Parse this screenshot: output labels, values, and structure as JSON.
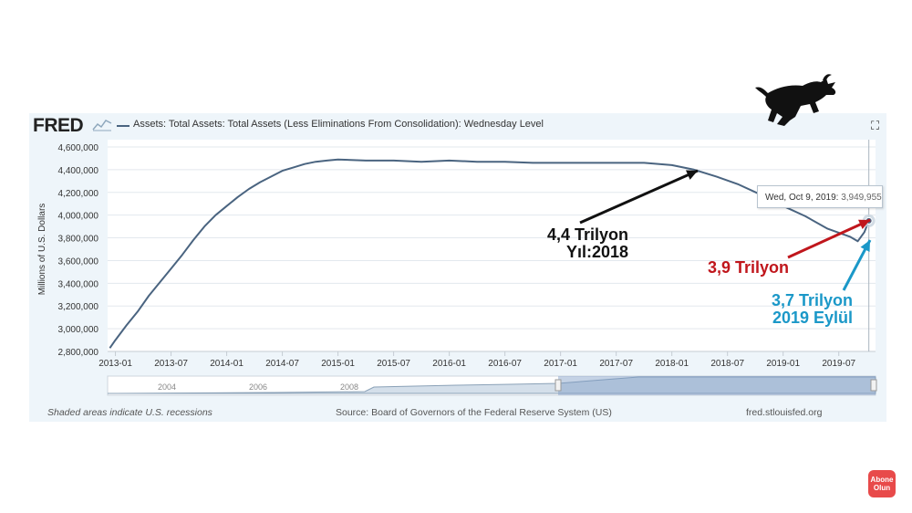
{
  "header": {
    "logo": "FRED",
    "series_title": "Assets: Total Assets: Total Assets (Less Eliminations From Consolidation): Wednesday Level"
  },
  "colors": {
    "line": "#4a6480",
    "panel": "#eef5fa",
    "red": "#c0161c",
    "blue": "#1b98c8"
  },
  "chart_data": {
    "type": "line",
    "ylabel": "Millions of U.S. Dollars",
    "y_ticks": [
      "4,600,000",
      "4,400,000",
      "4,200,000",
      "4,000,000",
      "3,800,000",
      "3,600,000",
      "3,400,000",
      "3,200,000",
      "3,000,000",
      "2,800,000"
    ],
    "y_tick_values": [
      4600000,
      4400000,
      4200000,
      4000000,
      3800000,
      3600000,
      3400000,
      3200000,
      3000000,
      2800000
    ],
    "ylim": [
      2800000,
      4600000
    ],
    "x_ticks": [
      "2013-01",
      "2013-07",
      "2014-01",
      "2014-07",
      "2015-01",
      "2015-07",
      "2016-01",
      "2016-07",
      "2017-01",
      "2017-07",
      "2018-01",
      "2018-07",
      "2019-01",
      "2019-07"
    ],
    "x_tick_values": [
      2013.0,
      2013.5,
      2014.0,
      2014.5,
      2015.0,
      2015.5,
      2016.0,
      2016.5,
      2017.0,
      2017.5,
      2018.0,
      2018.5,
      2019.0,
      2019.5
    ],
    "xlim": [
      2012.93,
      2019.83
    ],
    "grid": true,
    "series": [
      {
        "name": "Assets: Total Assets: Total Assets (Less Eliminations From Consolidation): Wednesday Level",
        "x": [
          2012.95,
          2013.0,
          2013.1,
          2013.2,
          2013.3,
          2013.4,
          2013.5,
          2013.6,
          2013.7,
          2013.8,
          2013.9,
          2014.0,
          2014.1,
          2014.2,
          2014.3,
          2014.4,
          2014.5,
          2014.6,
          2014.7,
          2014.8,
          2014.9,
          2015.0,
          2015.25,
          2015.5,
          2015.75,
          2016.0,
          2016.25,
          2016.5,
          2016.75,
          2017.0,
          2017.25,
          2017.5,
          2017.75,
          2018.0,
          2018.2,
          2018.4,
          2018.6,
          2018.8,
          2019.0,
          2019.2,
          2019.4,
          2019.6,
          2019.67,
          2019.73,
          2019.77
        ],
        "y": [
          2830000,
          2900000,
          3030000,
          3150000,
          3290000,
          3410000,
          3530000,
          3650000,
          3780000,
          3900000,
          4000000,
          4080000,
          4160000,
          4230000,
          4290000,
          4340000,
          4390000,
          4420000,
          4450000,
          4470000,
          4480000,
          4490000,
          4480000,
          4480000,
          4470000,
          4480000,
          4470000,
          4470000,
          4460000,
          4460000,
          4460000,
          4460000,
          4460000,
          4440000,
          4400000,
          4340000,
          4270000,
          4180000,
          4080000,
          3990000,
          3880000,
          3810000,
          3770000,
          3850000,
          3949955
        ]
      }
    ],
    "tooltip": {
      "label": "Wed, Oct 9, 2019:",
      "value": "3,949,955"
    },
    "navigator_years": [
      "2004",
      "2006",
      "2008"
    ],
    "annotations": [
      {
        "lines": [
          "4,4 Trilyon",
          "Yıl:2018"
        ],
        "color": "#111111"
      },
      {
        "lines": [
          "3,9 Trilyon"
        ],
        "color": "#c0161c"
      },
      {
        "lines": [
          "3,7 Trilyon",
          "2019 Eylül"
        ],
        "color": "#1b98c8"
      }
    ]
  },
  "footer": {
    "recession_note": "Shaded areas indicate U.S. recessions",
    "source": "Source: Board of Governors of the Federal Reserve System (US)",
    "site": "fred.stlouisfed.org"
  },
  "subscribe_badge": [
    "Abone",
    "Olun"
  ],
  "icons": {
    "fullscreen": "fullscreen-icon",
    "bull": "bull-icon",
    "chart_icon": "chart-icon"
  }
}
